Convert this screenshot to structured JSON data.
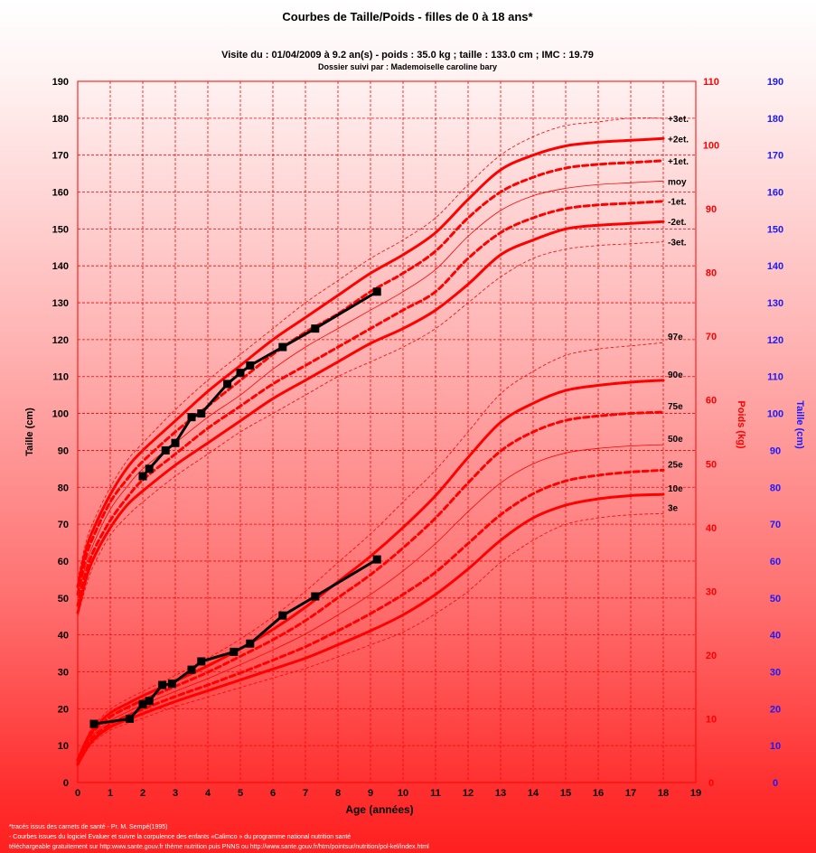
{
  "chart_data": {
    "type": "line",
    "title": "Courbes de Taille/Poids - filles de 0 à 18 ans*",
    "subtitle": "Visite du : 01/04/2009 à 9.2 an(s) - poids : 35.0 kg ; taille : 133.0 cm ; IMC : 19.79",
    "subtitle2": "Dossier suivi par : Mademoiselle caroline bary",
    "xlabel": "Age (années)",
    "ylabel_left": "Taille (cm)",
    "ylabel_right_weight": "Poids (kg)",
    "ylabel_right_height": "Taille (cm)",
    "xlim": [
      0,
      19
    ],
    "ylim_height": [
      0,
      190
    ],
    "ylim_weight": [
      0,
      110
    ],
    "x_ticks": [
      "0",
      "1",
      "2",
      "3",
      "4",
      "5",
      "6",
      "7",
      "8",
      "9",
      "10",
      "11",
      "12",
      "13",
      "14",
      "15",
      "16",
      "17",
      "18",
      "19"
    ],
    "y_ticks_height": [
      "0",
      "10",
      "20",
      "30",
      "40",
      "50",
      "60",
      "70",
      "80",
      "90",
      "100",
      "110",
      "120",
      "130",
      "140",
      "150",
      "160",
      "170",
      "180",
      "190"
    ],
    "y_ticks_weight": [
      "0",
      "10",
      "20",
      "30",
      "40",
      "50",
      "60",
      "70",
      "80",
      "90",
      "100",
      "110"
    ],
    "grid": true,
    "colors": {
      "reference": "#ff0000",
      "patient": "#000000",
      "left_axis": "#000000",
      "weight_axis": "#ff0000",
      "right_height_axis": "#1a1aff"
    },
    "age_grid": [
      0,
      0.25,
      0.5,
      1,
      1.5,
      2,
      3,
      4,
      5,
      6,
      7,
      8,
      9,
      10,
      11,
      12,
      13,
      14,
      15,
      16,
      17,
      18
    ],
    "height_series": [
      {
        "name": "+3et.",
        "style": "dotted-thin",
        "values": [
          55,
          65,
          71,
          80,
          87,
          92,
          101,
          109,
          116,
          123,
          130,
          136,
          142,
          147,
          153,
          162,
          170,
          175,
          178,
          179,
          180,
          180
        ]
      },
      {
        "name": "+2et.",
        "style": "solid-thick",
        "values": [
          53,
          63,
          69,
          78,
          85,
          90,
          98,
          106,
          113,
          120,
          126,
          132,
          138,
          143,
          149,
          158,
          166,
          170,
          172.5,
          173.5,
          174,
          174.5
        ]
      },
      {
        "name": "+1et.",
        "style": "dashed-thick",
        "values": [
          51,
          61,
          67,
          76,
          82,
          87,
          95,
          102,
          109,
          116,
          122,
          127,
          133,
          138,
          144,
          153,
          160,
          164,
          166.5,
          167.5,
          168,
          168.5
        ]
      },
      {
        "name": "moy",
        "style": "solid-thin",
        "values": [
          50,
          59,
          65,
          74,
          80,
          85,
          92,
          99,
          105,
          112,
          118,
          123,
          128,
          133,
          139,
          148,
          155,
          159,
          161,
          162,
          162.5,
          163
        ]
      },
      {
        "name": "-1et.",
        "style": "dashed-thick",
        "values": [
          48,
          57,
          63,
          71,
          77,
          82,
          89,
          96,
          102,
          108,
          113,
          118,
          123,
          128,
          133,
          142,
          149,
          153,
          155.5,
          156.5,
          157,
          157.5
        ]
      },
      {
        "name": "-2et.",
        "style": "solid-thick",
        "values": [
          46,
          55,
          61,
          69,
          75,
          79,
          86,
          92,
          98,
          104,
          109,
          114,
          119,
          123,
          128,
          135,
          143,
          147,
          150,
          151,
          151.5,
          152
        ]
      },
      {
        "name": "-3et.",
        "style": "dotted-thin",
        "values": [
          45,
          53,
          59,
          67,
          72,
          76,
          83,
          89,
          95,
          100,
          105,
          110,
          114,
          118,
          123,
          130,
          137,
          142,
          144.5,
          145.5,
          146,
          146.5
        ]
      }
    ],
    "weight_series": [
      {
        "name": "97e",
        "style": "dotted-thin",
        "values": [
          3.8,
          6.8,
          9,
          11.5,
          13,
          14.3,
          16.8,
          19.5,
          22.5,
          26,
          30,
          34.5,
          39,
          44,
          49,
          55,
          61,
          64.5,
          67,
          68,
          68.5,
          69
        ]
      },
      {
        "name": "90e",
        "style": "solid-thick",
        "values": [
          3.6,
          6.4,
          8.5,
          10.9,
          12.3,
          13.6,
          15.9,
          18.3,
          21,
          24,
          27.5,
          31.5,
          35.5,
          40,
          45,
          51,
          56.5,
          59.5,
          61.5,
          62.3,
          62.8,
          63.1
        ]
      },
      {
        "name": "75e",
        "style": "dashed-thick",
        "values": [
          3.4,
          6.1,
          8.1,
          10.3,
          11.7,
          12.9,
          15.1,
          17.3,
          19.8,
          22.4,
          25.4,
          29,
          32.6,
          36.8,
          41.5,
          47,
          52,
          55,
          56.8,
          57.5,
          57.9,
          58.1
        ]
      },
      {
        "name": "50e",
        "style": "solid-thin",
        "values": [
          3.2,
          5.8,
          7.6,
          9.7,
          11,
          12.2,
          14.3,
          16.3,
          18.5,
          20.8,
          23.3,
          26.3,
          29.5,
          33.2,
          37.5,
          42.5,
          47,
          50,
          51.7,
          52.4,
          52.8,
          53
        ]
      },
      {
        "name": "25e",
        "style": "dashed-thick",
        "values": [
          3,
          5.4,
          7.2,
          9.2,
          10.4,
          11.5,
          13.5,
          15.3,
          17.2,
          19.2,
          21.3,
          23.8,
          26.5,
          29.5,
          33,
          37.5,
          42,
          45.3,
          47.3,
          48.2,
          48.7,
          49
        ]
      },
      {
        "name": "10e",
        "style": "solid-thick",
        "values": [
          2.8,
          5.1,
          6.8,
          8.7,
          9.8,
          10.8,
          12.7,
          14.4,
          16.1,
          17.8,
          19.5,
          21.6,
          23.8,
          26.3,
          29.5,
          33.5,
          38,
          41.5,
          43.5,
          44.5,
          45,
          45.2
        ]
      },
      {
        "name": "3e",
        "style": "dotted-thin",
        "values": [
          2.6,
          4.8,
          6.4,
          8.2,
          9.2,
          10.1,
          11.9,
          13.4,
          14.9,
          16.4,
          17.9,
          19.7,
          21.6,
          23.6,
          26.5,
          30,
          34.5,
          38,
          40.5,
          41.5,
          42,
          42.2
        ]
      }
    ],
    "patient_height": {
      "x": [
        2.0,
        2.2,
        2.7,
        3.0,
        3.5,
        3.8,
        4.6,
        5.0,
        5.3,
        6.3,
        7.3,
        9.2
      ],
      "y": [
        83,
        85,
        90,
        92,
        99,
        100,
        108,
        111,
        113,
        118,
        123,
        133
      ]
    },
    "patient_weight": {
      "x": [
        0.5,
        1.6,
        2.0,
        2.2,
        2.6,
        2.9,
        3.5,
        3.8,
        4.8,
        5.3,
        6.3,
        7.3,
        9.2
      ],
      "y": [
        9.2,
        10.0,
        12.3,
        12.8,
        15.3,
        15.5,
        17.7,
        19.0,
        20.5,
        21.8,
        26.2,
        29.2,
        35.0
      ]
    }
  },
  "footnotes": [
    "*tracés issus des carnets de santé - Pr. M. Sempé(1995)",
    "- Courbes issues du logiciel Evaluer et suivre la corpulence des enfants «Calimco » du programme national nutrition santé",
    "téléchargeable gratuitement sur http:www.sante.gouv.fr thème nutrition puis PNNS ou http://www.sante.gouv.fr/htm/pointsur/nutrition/pol-kel/index.html"
  ]
}
